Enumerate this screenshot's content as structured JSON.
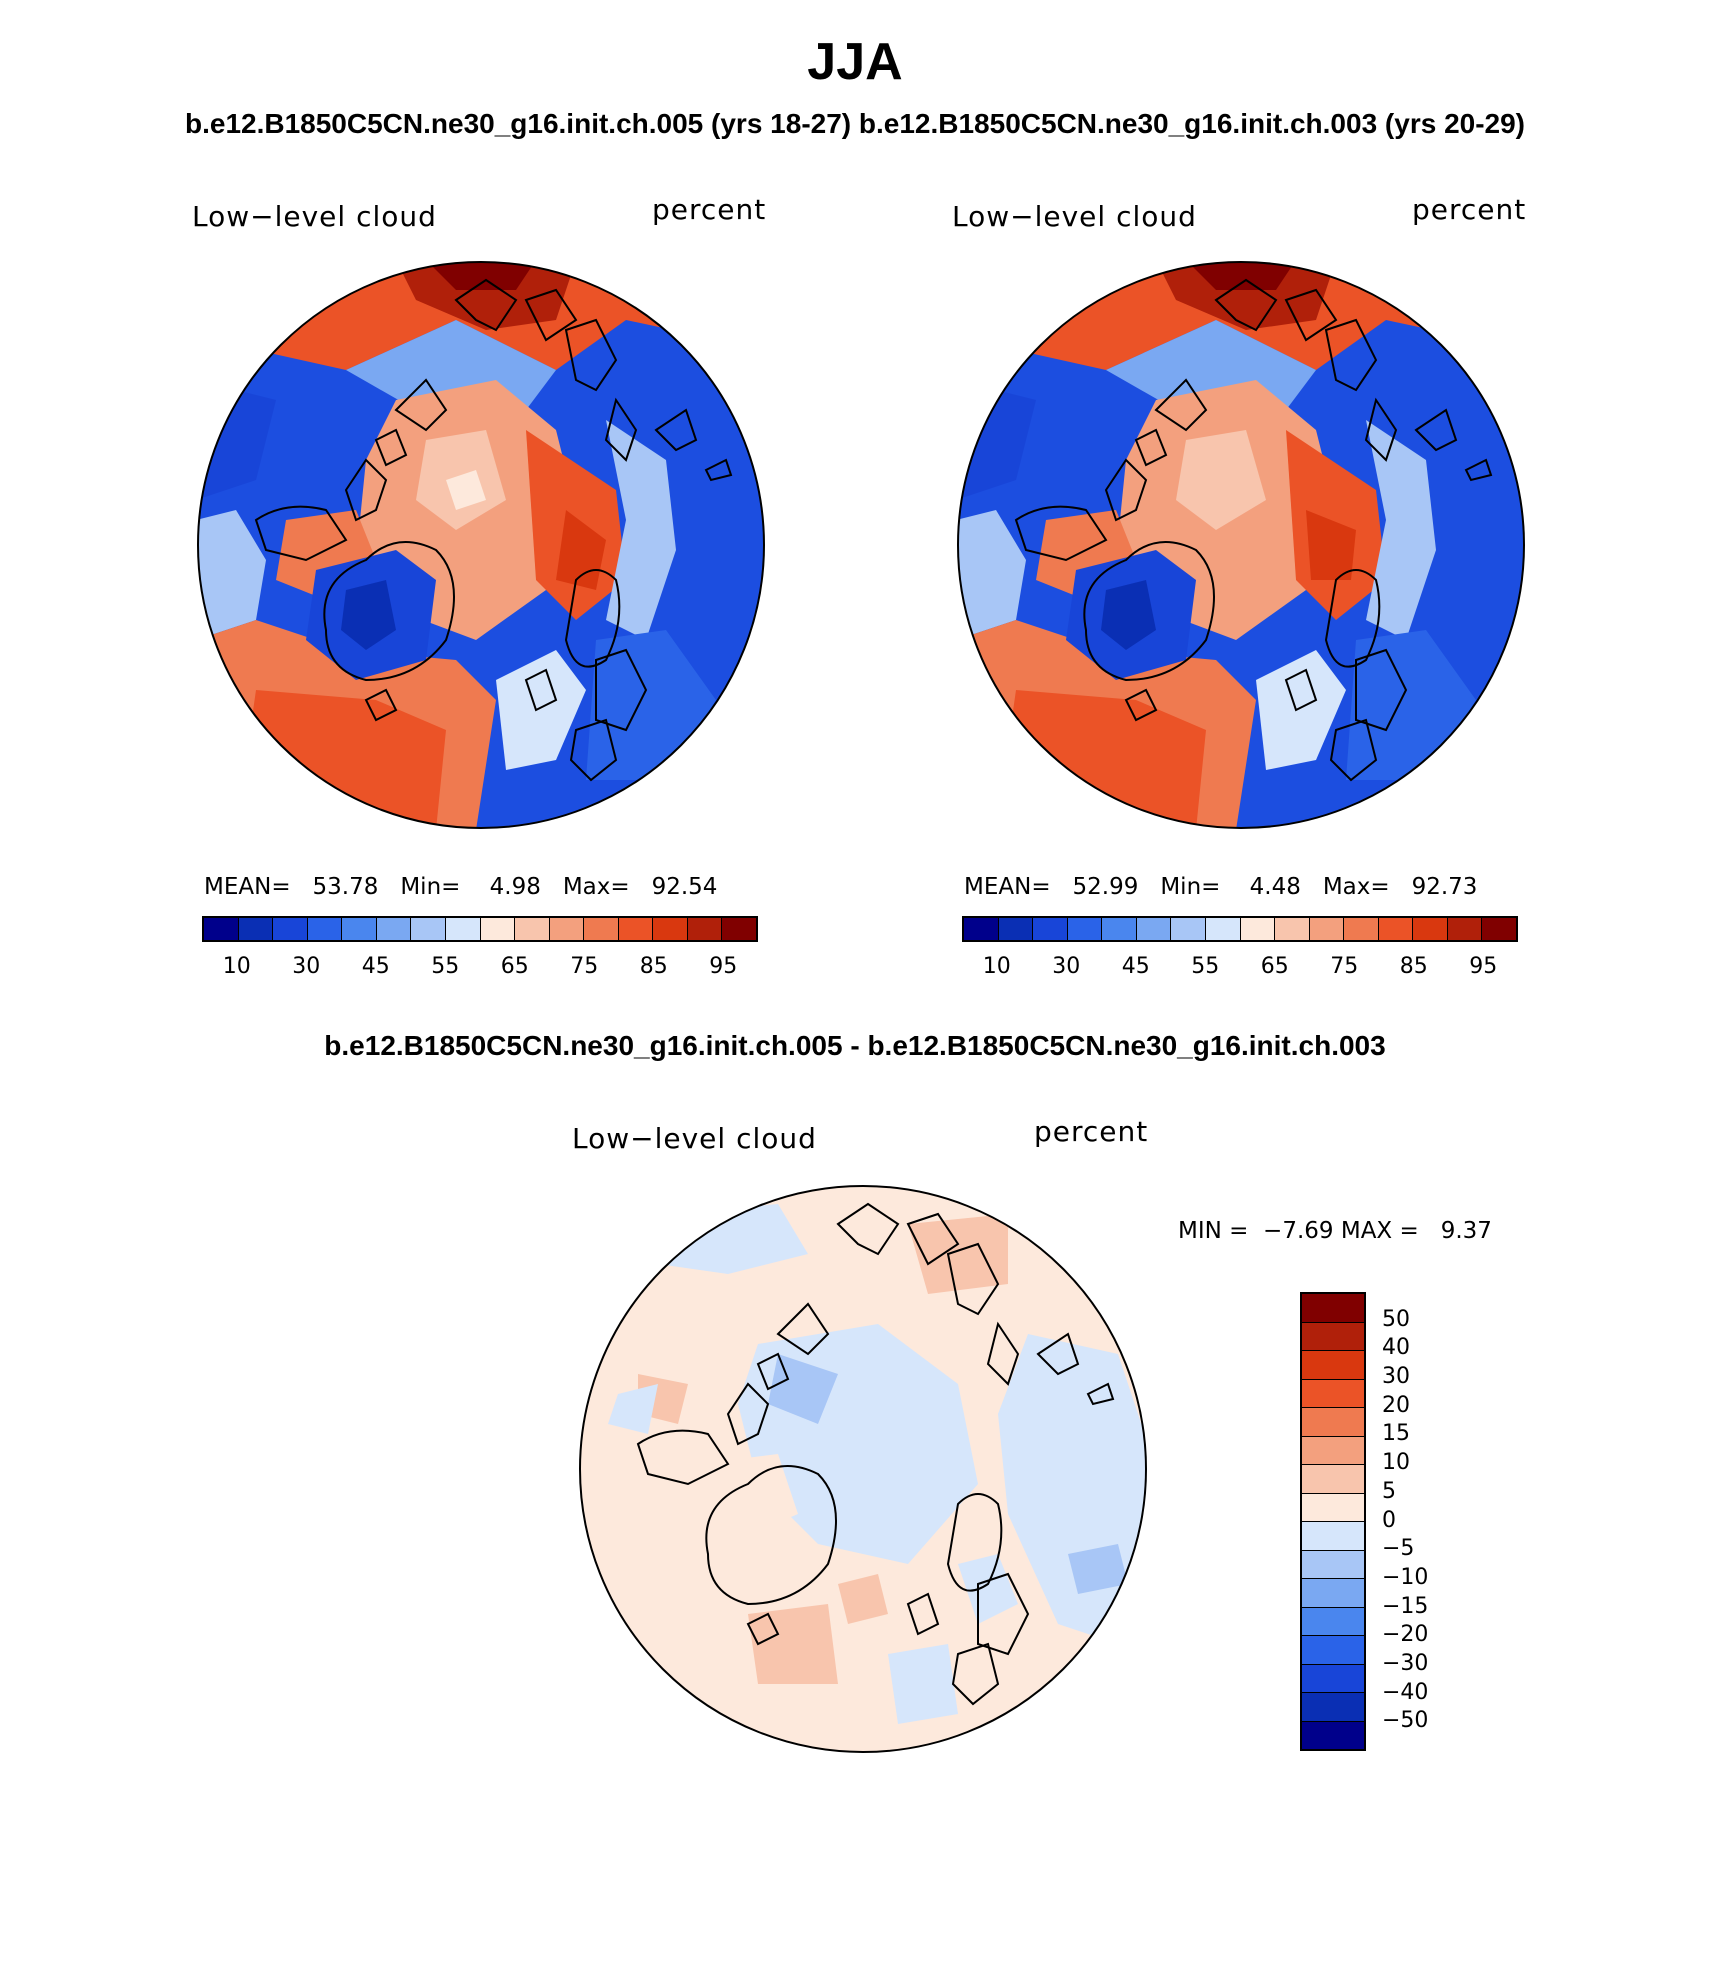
{
  "header": {
    "season": "JJA",
    "cases_line": "b.e12.B1850C5CN.ne30_g16.init.ch.005 (yrs 18-27) b.e12.B1850C5CN.ne30_g16.init.ch.003 (yrs 20-29)",
    "diff_line": "b.e12.B1850C5CN.ne30_g16.init.ch.005 - b.e12.B1850C5CN.ne30_g16.init.ch.003"
  },
  "panels": [
    {
      "variable": "Low−level cloud",
      "units": "percent",
      "stats": {
        "mean_label": "MEAN=",
        "mean": "53.78",
        "min_label": "Min=",
        "min": "4.98",
        "max_label": "Max=",
        "max": "92.54"
      }
    },
    {
      "variable": "Low−level cloud",
      "units": "percent",
      "stats": {
        "mean_label": "MEAN=",
        "mean": "52.99",
        "min_label": "Min=",
        "min": "4.48",
        "max_label": "Max=",
        "max": "92.73"
      }
    }
  ],
  "diff_panel": {
    "variable": "Low−level cloud",
    "units": "percent",
    "stats": {
      "min_label": "MIN =",
      "min": "−7.69",
      "max_label": "MAX =",
      "max": "9.37"
    }
  },
  "colorbar_abs": {
    "tick_labels": [
      "10",
      "30",
      "45",
      "55",
      "65",
      "75",
      "85",
      "95"
    ],
    "colors": [
      "#00008b",
      "#0a2fb4",
      "#1845d8",
      "#2a63e8",
      "#4a86ee",
      "#7aa8f2",
      "#a8c6f6",
      "#d6e6fb",
      "#fde9dc",
      "#f8c5ad",
      "#f3a07e",
      "#ef7a50",
      "#eb5327",
      "#d9380f",
      "#b0200a",
      "#800000"
    ]
  },
  "colorbar_diff": {
    "tick_labels": [
      "50",
      "40",
      "30",
      "20",
      "15",
      "10",
      "5",
      "0",
      "−5",
      "−10",
      "−15",
      "−20",
      "−30",
      "−40",
      "−50"
    ],
    "colors": [
      "#800000",
      "#b0200a",
      "#d9380f",
      "#eb5327",
      "#ef7a50",
      "#f3a07e",
      "#f8c5ad",
      "#fde9dc",
      "#d6e6fb",
      "#a8c6f6",
      "#7aa8f2",
      "#4a86ee",
      "#2a63e8",
      "#1845d8",
      "#0a2fb4",
      "#00008b"
    ]
  }
}
